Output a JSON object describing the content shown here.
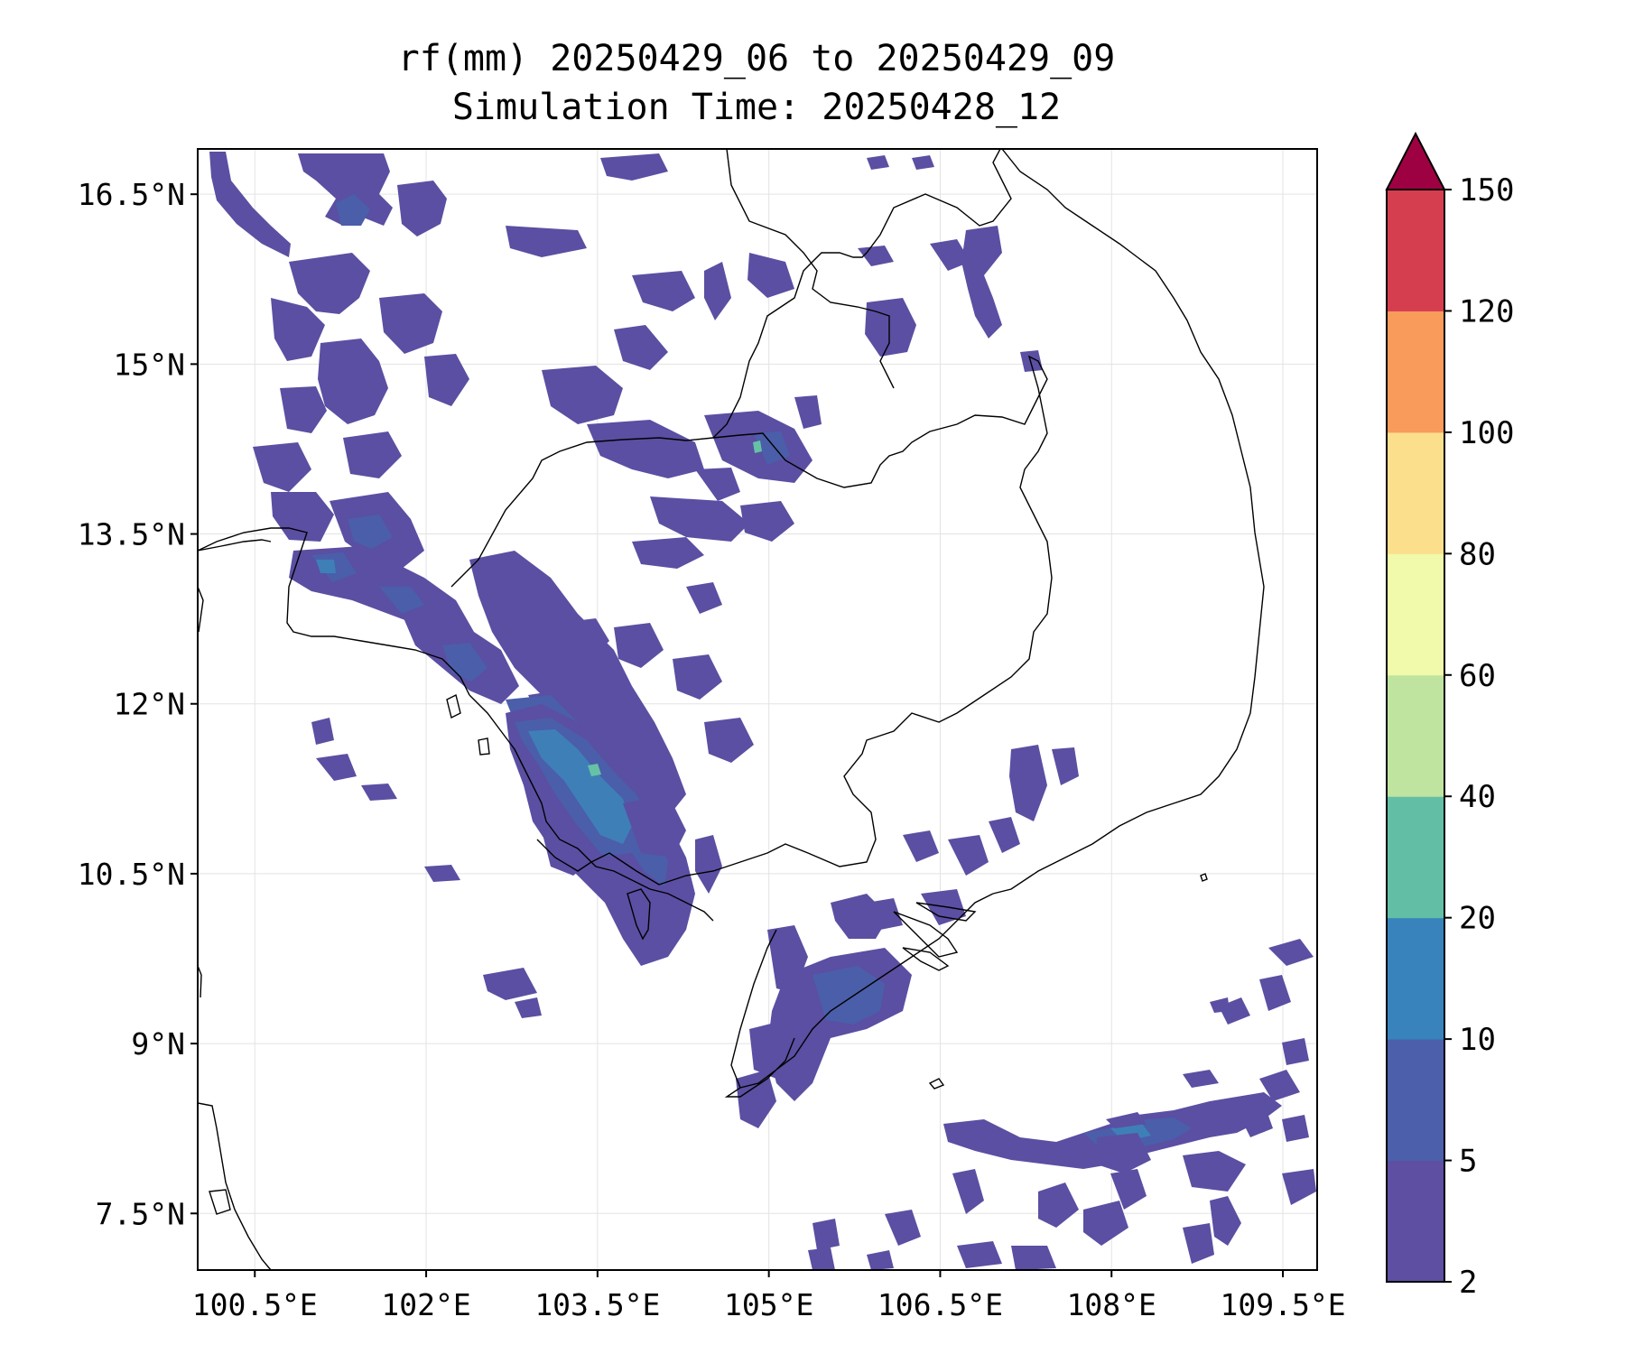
{
  "title": {
    "line1": "rf(mm) 20250429_06 to 20250429_09",
    "line2": "Simulation Time: 20250428_12"
  },
  "map": {
    "lon_range": [
      100.0,
      109.8
    ],
    "lat_range": [
      7.0,
      16.9
    ],
    "lon_ticks": [
      {
        "value": 100.5,
        "label": "100.5°E"
      },
      {
        "value": 102.0,
        "label": "102°E"
      },
      {
        "value": 103.5,
        "label": "103.5°E"
      },
      {
        "value": 105.0,
        "label": "105°E"
      },
      {
        "value": 106.5,
        "label": "106.5°E"
      },
      {
        "value": 108.0,
        "label": "108°E"
      },
      {
        "value": 109.5,
        "label": "109.5°E"
      }
    ],
    "lat_ticks": [
      {
        "value": 16.5,
        "label": "16.5°N"
      },
      {
        "value": 15.0,
        "label": "15°N"
      },
      {
        "value": 13.5,
        "label": "13.5°N"
      },
      {
        "value": 12.0,
        "label": "12°N"
      },
      {
        "value": 10.5,
        "label": "10.5°N"
      },
      {
        "value": 9.0,
        "label": "9°N"
      },
      {
        "value": 7.5,
        "label": "7.5°N"
      }
    ],
    "grid": true
  },
  "colorbar": {
    "levels": [
      {
        "label": "2",
        "color": "#5e4fa2"
      },
      {
        "label": "5",
        "color": "#4b5fab"
      },
      {
        "label": "10",
        "color": "#3883bb"
      },
      {
        "label": "20",
        "color": "#62bfa6"
      },
      {
        "label": "40",
        "color": "#bfe4a0"
      },
      {
        "label": "60",
        "color": "#f1f9ab"
      },
      {
        "label": "80",
        "color": "#fbdf8c"
      },
      {
        "label": "100",
        "color": "#f99b5b"
      },
      {
        "label": "120",
        "color": "#d53e4f"
      },
      {
        "label": "150",
        "color": "#9e0142"
      }
    ],
    "extend": "max"
  }
}
